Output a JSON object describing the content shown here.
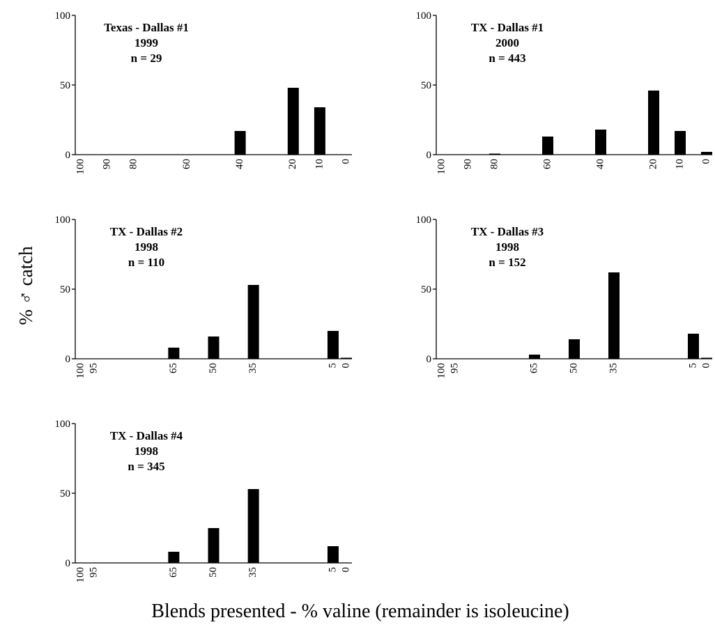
{
  "figure": {
    "ylabel": "% ♂ catch",
    "xlabel": "Blends presented - % valine (remainder is isoleucine)"
  },
  "chart_data": [
    {
      "type": "bar",
      "title_lines": [
        "Texas - Dallas #1",
        "1999",
        "n = 29"
      ],
      "xlim": [
        100,
        0
      ],
      "ylim": [
        0,
        100
      ],
      "yticks": [
        0,
        50,
        100
      ],
      "categories": [
        "100",
        "90",
        "80",
        "60",
        "40",
        "20",
        "10",
        "0"
      ],
      "x": [
        100,
        90,
        80,
        60,
        40,
        20,
        10,
        0
      ],
      "values": [
        0,
        0,
        0,
        0,
        17,
        48,
        34,
        0
      ]
    },
    {
      "type": "bar",
      "title_lines": [
        "TX - Dallas #1",
        "2000",
        "n = 443"
      ],
      "xlim": [
        100,
        0
      ],
      "ylim": [
        0,
        100
      ],
      "yticks": [
        0,
        50,
        100
      ],
      "categories": [
        "100",
        "90",
        "80",
        "60",
        "40",
        "20",
        "10",
        "0"
      ],
      "x": [
        100,
        90,
        80,
        60,
        40,
        20,
        10,
        0
      ],
      "values": [
        0,
        0,
        0.5,
        13,
        18,
        46,
        17,
        2
      ]
    },
    {
      "type": "bar",
      "title_lines": [
        "TX - Dallas #2",
        "1998",
        "n = 110"
      ],
      "xlim": [
        100,
        0
      ],
      "ylim": [
        0,
        100
      ],
      "yticks": [
        0,
        50,
        100
      ],
      "categories": [
        "100",
        "95",
        "65",
        "50",
        "35",
        "5",
        "0"
      ],
      "x": [
        100,
        95,
        65,
        50,
        35,
        5,
        0
      ],
      "values": [
        0,
        0,
        8,
        16,
        53,
        20,
        0.5
      ]
    },
    {
      "type": "bar",
      "title_lines": [
        "TX - Dallas #3",
        "1998",
        "n = 152"
      ],
      "xlim": [
        100,
        0
      ],
      "ylim": [
        0,
        100
      ],
      "yticks": [
        0,
        50,
        100
      ],
      "categories": [
        "100",
        "95",
        "65",
        "50",
        "35",
        "5",
        "0"
      ],
      "x": [
        100,
        95,
        65,
        50,
        35,
        5,
        0
      ],
      "values": [
        0,
        0,
        3,
        14,
        62,
        18,
        0.3
      ]
    },
    {
      "type": "bar",
      "title_lines": [
        "TX - Dallas #4",
        "1998",
        "n = 345"
      ],
      "xlim": [
        100,
        0
      ],
      "ylim": [
        0,
        100
      ],
      "yticks": [
        0,
        50,
        100
      ],
      "categories": [
        "100",
        "95",
        "65",
        "50",
        "35",
        "5",
        "0"
      ],
      "x": [
        100,
        95,
        65,
        50,
        35,
        5,
        0
      ],
      "values": [
        0,
        0,
        8,
        25,
        53,
        12,
        0
      ]
    }
  ]
}
